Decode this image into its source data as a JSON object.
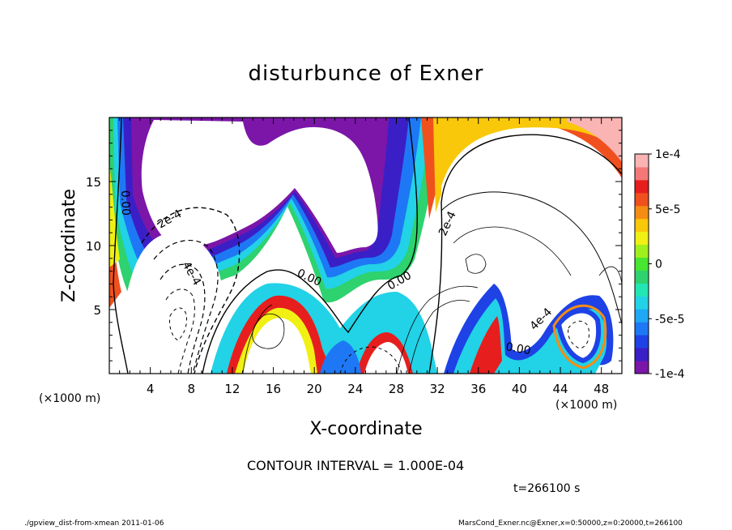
{
  "title": "disturbunce of Exner",
  "contour_interval_label": "CONTOUR INTERVAL = 1.000E-04",
  "time_label": "t=266100 s",
  "footer_left": "./gpview_dist-from-xmean  2011-01-06",
  "footer_right": "MarsCond_Exner.nc@Exner,x=0:50000,z=0:20000,t=266100",
  "chart_data": {
    "type": "heatmap",
    "title": "disturbunce of Exner",
    "xlabel": "X-coordinate",
    "ylabel": "Z-coordinate",
    "x_unit_label": "(×1000 m)",
    "y_unit_label": "(×1000 m)",
    "xlim": [
      0,
      50
    ],
    "ylim": [
      0,
      20
    ],
    "x_ticks": [
      4,
      8,
      12,
      16,
      20,
      24,
      28,
      32,
      36,
      40,
      44,
      48
    ],
    "y_ticks": [
      5,
      10,
      15
    ],
    "colorbar": {
      "range": [
        -0.0001,
        0.0001
      ],
      "tick_values": [
        0.0001,
        5e-05,
        0,
        -5e-05,
        -0.0001
      ],
      "tick_labels": [
        "1e-4",
        "5e-5",
        "0",
        "-5e-5",
        "-1e-4"
      ],
      "colors": [
        "#7b16a8",
        "#3a1fc7",
        "#1e42e6",
        "#1e78f5",
        "#1ea8f5",
        "#22d2e6",
        "#22e6b4",
        "#2ed26e",
        "#46e632",
        "#a0f01e",
        "#f0f014",
        "#fac80a",
        "#f58c14",
        "#f0501e",
        "#e61e1e",
        "#f57878",
        "#fab4b4"
      ]
    },
    "contour_interval": 0.0001,
    "contour_labels": [
      "0.00",
      "2e-4",
      "4e-4",
      "0.00",
      "0.00",
      "0.00",
      "2e-4",
      "4e-4",
      "0.00"
    ]
  }
}
